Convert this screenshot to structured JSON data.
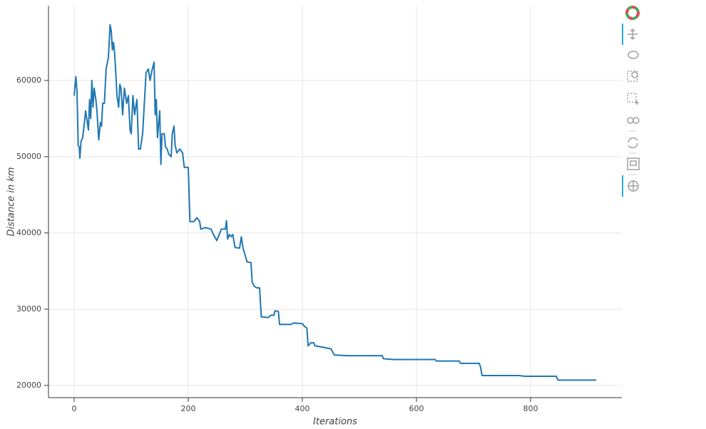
{
  "chart_data": {
    "type": "line",
    "x_label": "Iterations",
    "y_label": "Distance in km",
    "color": "#1f77b4",
    "grid": true,
    "xlim": [
      -45,
      960
    ],
    "ylim": [
      18400,
      69800
    ],
    "xticks": [
      0,
      200,
      400,
      600,
      800
    ],
    "yticks": [
      20000,
      30000,
      40000,
      50000,
      60000
    ],
    "x": [
      0,
      3,
      5,
      7,
      9,
      10,
      12,
      15,
      18,
      20,
      22,
      25,
      27,
      29,
      31,
      33,
      35,
      38,
      40,
      43,
      46,
      48,
      50,
      53,
      56,
      60,
      63,
      65,
      67,
      69,
      71,
      73,
      75,
      78,
      80,
      82,
      85,
      88,
      92,
      95,
      98,
      100,
      103,
      106,
      110,
      113,
      116,
      120,
      123,
      126,
      130,
      133,
      136,
      140,
      142,
      144,
      146,
      150,
      152,
      154,
      158,
      160,
      163,
      166,
      170,
      172,
      175,
      177,
      180,
      185,
      190,
      193,
      200,
      203,
      210,
      215,
      220,
      222,
      230,
      240,
      244,
      250,
      258,
      265,
      267,
      269,
      272,
      275,
      278,
      282,
      290,
      293,
      296,
      300,
      303,
      310,
      312,
      316,
      320,
      325,
      328,
      340,
      345,
      350,
      352,
      358,
      360,
      380,
      385,
      400,
      403,
      408,
      410,
      415,
      420,
      422,
      437,
      450,
      456,
      480,
      540,
      542,
      560,
      633,
      635,
      675,
      677,
      710,
      712,
      715,
      780,
      790,
      845,
      848,
      915
    ],
    "values": [
      58000,
      60500,
      58500,
      51500,
      51200,
      49800,
      52000,
      52500,
      54500,
      56000,
      55000,
      53500,
      57500,
      55000,
      60000,
      56500,
      59000,
      57500,
      56000,
      52200,
      54500,
      54000,
      57000,
      57000,
      61500,
      63000,
      67300,
      66500,
      64000,
      65000,
      63500,
      61000,
      58000,
      56500,
      59500,
      59000,
      55500,
      59000,
      57000,
      58000,
      53500,
      53000,
      58000,
      55500,
      57500,
      51000,
      51000,
      53000,
      57000,
      61000,
      61500,
      60000,
      61200,
      62400,
      55500,
      57500,
      52500,
      56000,
      49000,
      53000,
      53000,
      51300,
      51000,
      50300,
      50000,
      53000,
      54000,
      51500,
      50500,
      51000,
      50500,
      48600,
      48600,
      41500,
      41500,
      42000,
      41500,
      40500,
      40700,
      40500,
      39800,
      39000,
      40500,
      40500,
      41600,
      39200,
      39800,
      39500,
      39800,
      38100,
      38000,
      39500,
      38000,
      37000,
      36200,
      36100,
      33500,
      33000,
      32800,
      32800,
      29000,
      28900,
      29200,
      29200,
      29800,
      29700,
      28000,
      28000,
      28200,
      28100,
      27800,
      27500,
      25200,
      25600,
      25600,
      25200,
      25000,
      24800,
      24000,
      23900,
      23900,
      23500,
      23400,
      23400,
      23200,
      23200,
      22900,
      22900,
      22500,
      21300,
      21300,
      21200,
      21200,
      20700,
      20700
    ]
  }
}
